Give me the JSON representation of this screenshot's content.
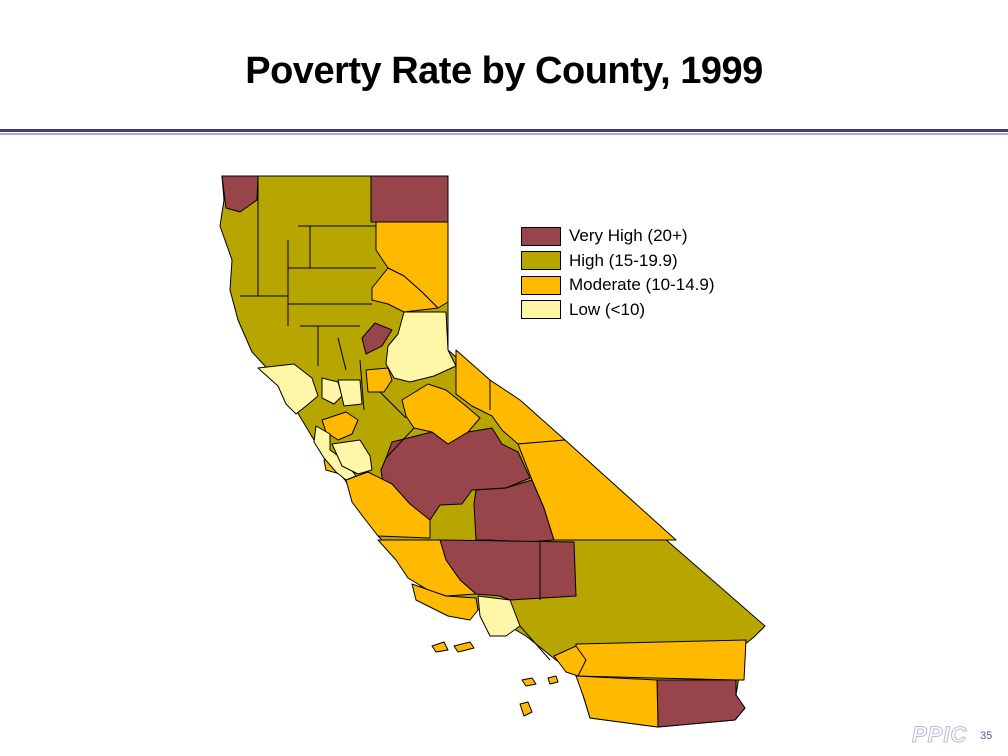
{
  "slide": {
    "title": "Poverty Rate by County, 1999",
    "logo": "PPIC",
    "page_number": "35"
  },
  "legend": {
    "items": [
      {
        "label": "Very High (20+)",
        "color": "#98444b"
      },
      {
        "label": "High (15-19.9)",
        "color": "#b8a600"
      },
      {
        "label": "Moderate (10-14.9)",
        "color": "#ffba00"
      },
      {
        "label": "Low (<10)",
        "color": "#fff7a7"
      }
    ]
  },
  "map": {
    "region": "California",
    "border_color": "#000000"
  }
}
